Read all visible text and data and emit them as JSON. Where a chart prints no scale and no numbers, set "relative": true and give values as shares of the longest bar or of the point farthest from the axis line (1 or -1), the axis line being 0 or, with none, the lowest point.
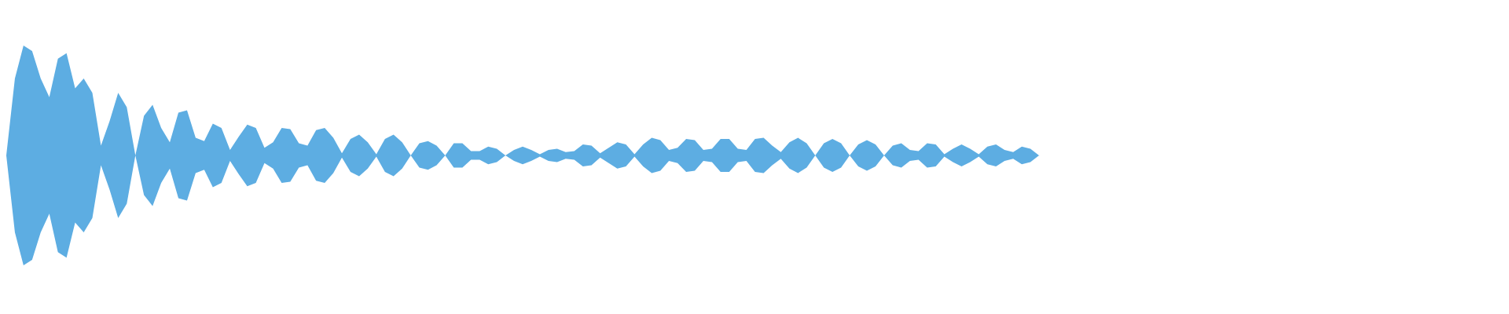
{
  "chart_data": {
    "type": "area",
    "relative": true,
    "categories": [
      null,
      null,
      null,
      null,
      null,
      null,
      null,
      null,
      null,
      null,
      null,
      null,
      null,
      null,
      null,
      null,
      null,
      null,
      null,
      null,
      null,
      null,
      null,
      null,
      null,
      null,
      null,
      null,
      null,
      null,
      null,
      null,
      null,
      null,
      null,
      null,
      null,
      null,
      null,
      null,
      null,
      null,
      null,
      null,
      null,
      null,
      null,
      null,
      null,
      null,
      null,
      null,
      null,
      null,
      null,
      null,
      null,
      null,
      null,
      null,
      null,
      null,
      null,
      null,
      null,
      null,
      null,
      null,
      null,
      null,
      null,
      null,
      null,
      null,
      null,
      null,
      null,
      null,
      null,
      null,
      null,
      null,
      null,
      null,
      null,
      null,
      null,
      null,
      null,
      null,
      null,
      null,
      null,
      null,
      null,
      null,
      null,
      null,
      null,
      null,
      null,
      null,
      null,
      null,
      null,
      null,
      null,
      null,
      null,
      null,
      null,
      null,
      null,
      null,
      null,
      null,
      null,
      null,
      null,
      null,
      null
    ],
    "series": [
      {
        "color": "#5dade2",
        "values": [
          0,
          0.7,
          1,
          0.95,
          0.7,
          0.53,
          0.88,
          0.93,
          0.61,
          0.7,
          0.57,
          0.09,
          0.31,
          0.57,
          0.44,
          0,
          0.36,
          0.46,
          0.25,
          0.12,
          0.39,
          0.41,
          0.16,
          0.13,
          0.29,
          0.25,
          0.05,
          0.17,
          0.28,
          0.25,
          0.07,
          0.12,
          0.25,
          0.24,
          0.11,
          0.09,
          0.23,
          0.25,
          0.16,
          0.02,
          0.15,
          0.19,
          0.12,
          0.01,
          0.15,
          0.19,
          0.12,
          0,
          0.11,
          0.13,
          0.09,
          0,
          0.11,
          0.11,
          0.04,
          0.04,
          0.08,
          0.06,
          0,
          0.05,
          0.08,
          0.05,
          0.01,
          0.05,
          0.06,
          0.03,
          0.04,
          0.1,
          0.09,
          0.02,
          0.07,
          0.12,
          0.1,
          0.01,
          0.1,
          0.16,
          0.14,
          0.05,
          0.07,
          0.15,
          0.14,
          0.05,
          0.06,
          0.15,
          0.15,
          0.06,
          0.05,
          0.15,
          0.16,
          0.09,
          0.03,
          0.12,
          0.16,
          0.11,
          0,
          0.11,
          0.15,
          0.11,
          0,
          0.1,
          0.14,
          0.1,
          0,
          0.09,
          0.11,
          0.05,
          0.04,
          0.11,
          0.1,
          0.01,
          0.06,
          0.1,
          0.06,
          0.01,
          0.08,
          0.1,
          0.05,
          0.03,
          0.08,
          0.06,
          0
        ]
      },
      {
        "color": "#5dade2",
        "values": [
          0,
          -0.7,
          -1,
          -0.95,
          -0.7,
          -0.53,
          -0.88,
          -0.93,
          -0.61,
          -0.7,
          -0.57,
          -0.09,
          -0.31,
          -0.57,
          -0.44,
          0,
          -0.36,
          -0.46,
          -0.25,
          -0.12,
          -0.39,
          -0.41,
          -0.16,
          -0.13,
          -0.29,
          -0.25,
          -0.05,
          -0.17,
          -0.28,
          -0.25,
          -0.07,
          -0.12,
          -0.25,
          -0.24,
          -0.11,
          -0.09,
          -0.23,
          -0.25,
          -0.16,
          -0.02,
          -0.15,
          -0.19,
          -0.12,
          -0.01,
          -0.15,
          -0.19,
          -0.12,
          0,
          -0.11,
          -0.13,
          -0.09,
          0,
          -0.11,
          -0.11,
          -0.04,
          -0.04,
          -0.08,
          -0.06,
          0,
          -0.05,
          -0.08,
          -0.05,
          -0.01,
          -0.05,
          -0.06,
          -0.03,
          -0.04,
          -0.1,
          -0.09,
          -0.02,
          -0.07,
          -0.12,
          -0.1,
          -0.01,
          -0.1,
          -0.16,
          -0.14,
          -0.05,
          -0.07,
          -0.15,
          -0.14,
          -0.05,
          -0.06,
          -0.15,
          -0.15,
          -0.06,
          -0.05,
          -0.15,
          -0.16,
          -0.09,
          -0.03,
          -0.12,
          -0.16,
          -0.11,
          0,
          -0.11,
          -0.15,
          -0.11,
          0,
          -0.1,
          -0.14,
          -0.1,
          0,
          -0.09,
          -0.11,
          -0.05,
          -0.04,
          -0.11,
          -0.1,
          -0.01,
          -0.06,
          -0.1,
          -0.06,
          -0.01,
          -0.08,
          -0.1,
          -0.05,
          -0.03,
          -0.08,
          -0.06,
          0
        ]
      }
    ]
  }
}
